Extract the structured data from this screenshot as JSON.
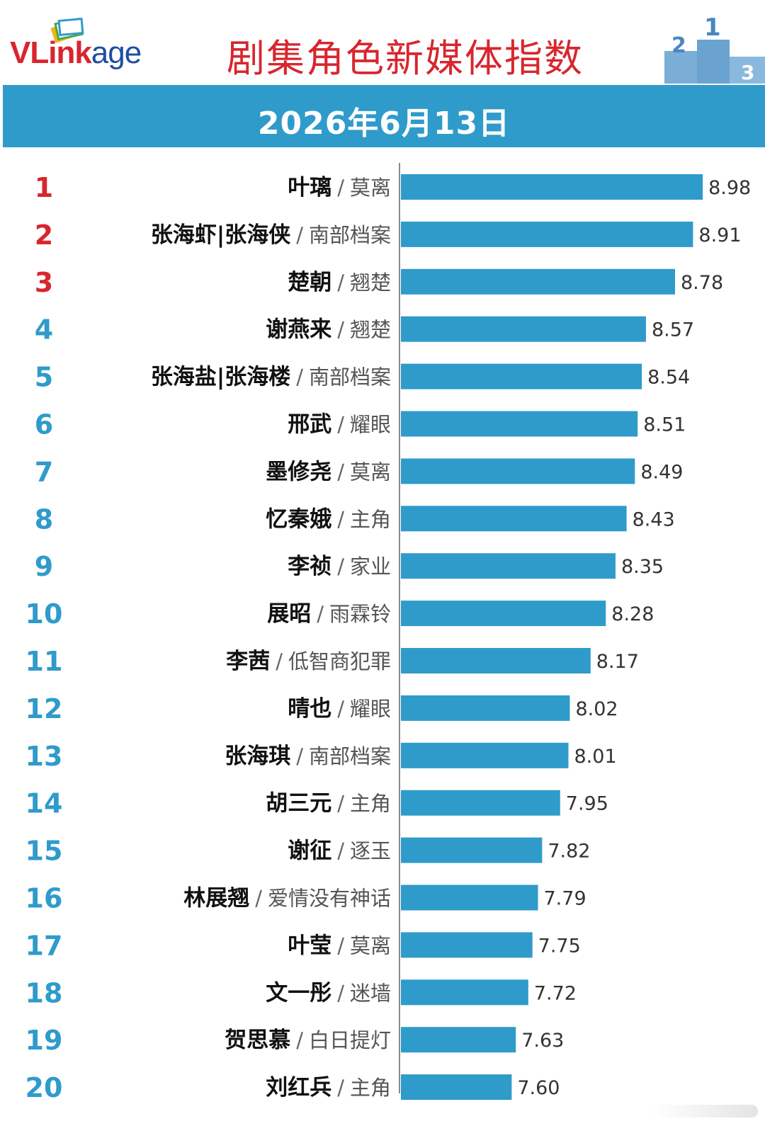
{
  "header": {
    "logo": {
      "text_main": "VLink",
      "text_tail": "age"
    },
    "title": "剧集角色新媒体指数",
    "podium": {
      "first": "1",
      "second": "2",
      "third": "3"
    }
  },
  "date_band": {
    "date": "2026年6月13日"
  },
  "colors": {
    "bar": "#2f9bcb",
    "rank_top3": "#d8262e",
    "rank_rest": "#2f9bcb",
    "title": "#d8262e",
    "logo_blue": "#1f4ea3"
  },
  "chart_data": {
    "type": "bar",
    "orientation": "horizontal",
    "title": "剧集角色新媒体指数",
    "subtitle": "2026年6月13日",
    "xlim": [
      6.8,
      9.0
    ],
    "grid": false,
    "rows": [
      {
        "rank": "1",
        "character": "叶璃",
        "drama": "莫离",
        "value": 8.98,
        "label": "8.98"
      },
      {
        "rank": "2",
        "character": "张海虾|张海侠",
        "drama": "南部档案",
        "value": 8.91,
        "label": "8.91"
      },
      {
        "rank": "3",
        "character": "楚朝",
        "drama": "翘楚",
        "value": 8.78,
        "label": "8.78"
      },
      {
        "rank": "4",
        "character": "谢燕来",
        "drama": "翘楚",
        "value": 8.57,
        "label": "8.57"
      },
      {
        "rank": "5",
        "character": "张海盐|张海楼",
        "drama": "南部档案",
        "value": 8.54,
        "label": "8.54"
      },
      {
        "rank": "6",
        "character": "邢武",
        "drama": "耀眼",
        "value": 8.51,
        "label": "8.51"
      },
      {
        "rank": "7",
        "character": "墨修尧",
        "drama": "莫离",
        "value": 8.49,
        "label": "8.49"
      },
      {
        "rank": "8",
        "character": "忆秦娥",
        "drama": "主角",
        "value": 8.43,
        "label": "8.43"
      },
      {
        "rank": "9",
        "character": "李祯",
        "drama": "家业",
        "value": 8.35,
        "label": "8.35"
      },
      {
        "rank": "10",
        "character": "展昭",
        "drama": "雨霖铃",
        "value": 8.28,
        "label": "8.28"
      },
      {
        "rank": "11",
        "character": "李茜",
        "drama": "低智商犯罪",
        "value": 8.17,
        "label": "8.17"
      },
      {
        "rank": "12",
        "character": "晴也",
        "drama": "耀眼",
        "value": 8.02,
        "label": "8.02"
      },
      {
        "rank": "13",
        "character": "张海琪",
        "drama": "南部档案",
        "value": 8.01,
        "label": "8.01"
      },
      {
        "rank": "14",
        "character": "胡三元",
        "drama": "主角",
        "value": 7.95,
        "label": "7.95"
      },
      {
        "rank": "15",
        "character": "谢征",
        "drama": "逐玉",
        "value": 7.82,
        "label": "7.82"
      },
      {
        "rank": "16",
        "character": "林展翘",
        "drama": "爱情没有神话",
        "value": 7.79,
        "label": "7.79"
      },
      {
        "rank": "17",
        "character": "叶莹",
        "drama": "莫离",
        "value": 7.75,
        "label": "7.75"
      },
      {
        "rank": "18",
        "character": "文一彤",
        "drama": "迷墙",
        "value": 7.72,
        "label": "7.72"
      },
      {
        "rank": "19",
        "character": "贺思慕",
        "drama": "白日提灯",
        "value": 7.63,
        "label": "7.63"
      },
      {
        "rank": "20",
        "character": "刘红兵",
        "drama": "主角",
        "value": 7.6,
        "label": "7.60"
      }
    ]
  }
}
